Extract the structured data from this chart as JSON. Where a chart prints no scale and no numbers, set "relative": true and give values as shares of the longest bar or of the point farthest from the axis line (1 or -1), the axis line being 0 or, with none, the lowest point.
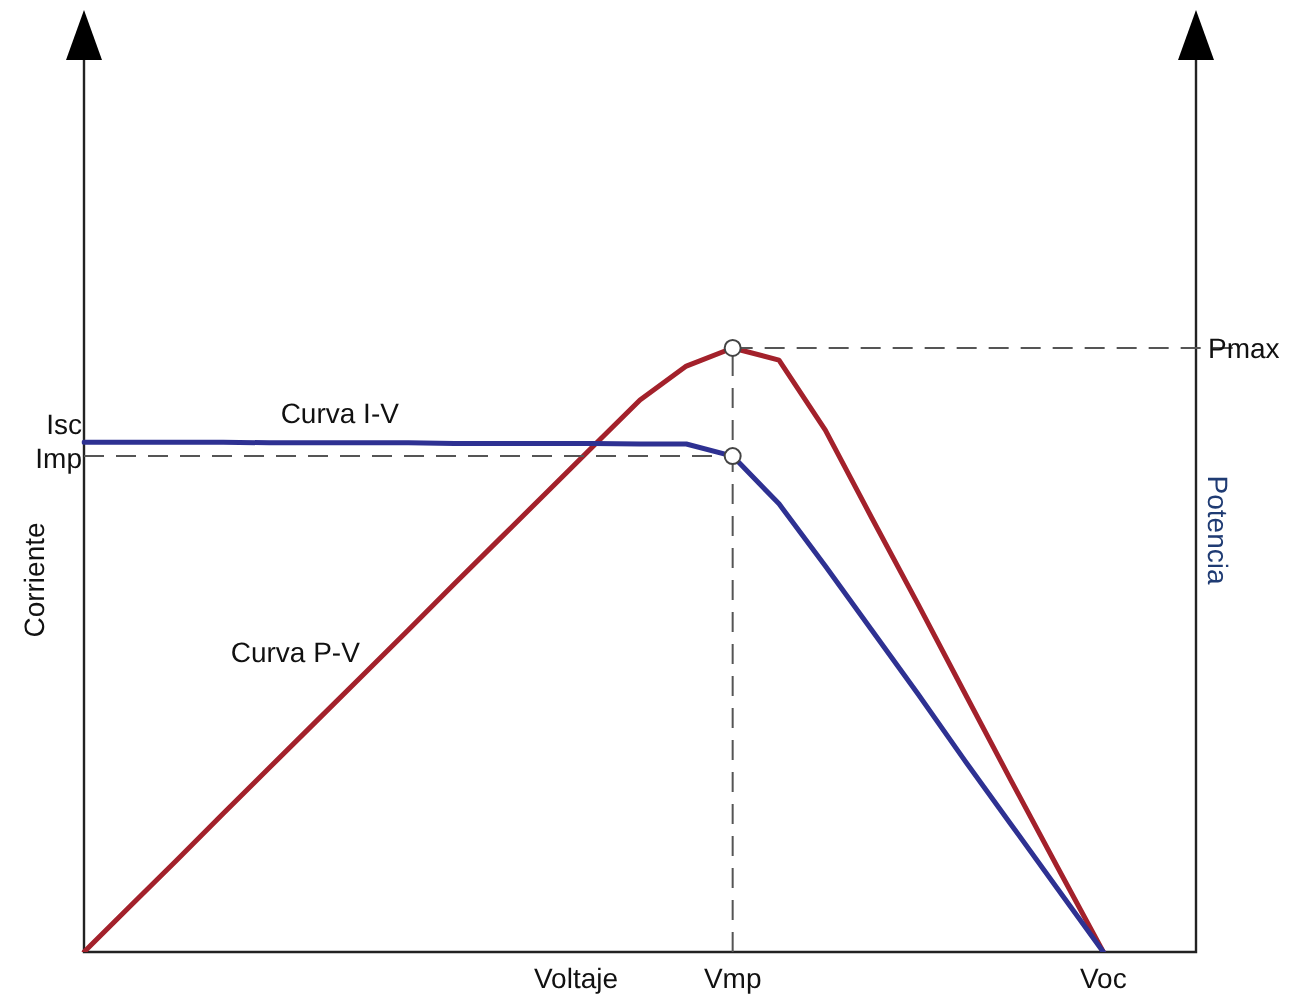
{
  "chart_data": {
    "type": "line",
    "relative": true,
    "xlabel": "Voltaje",
    "ylabel": "Corriente",
    "y2label": "Potencia",
    "legend": false,
    "categories": [
      null,
      null,
      null,
      null,
      null,
      null,
      null,
      null,
      null,
      null,
      null,
      null,
      null,
      null,
      "Vmp",
      null,
      null,
      null,
      null,
      null,
      null,
      null,
      "Voc",
      null,
      null
    ],
    "series": [
      {
        "name": "Curva I-V",
        "color": "#2e3192",
        "values": [
          0.844,
          0.844,
          0.844,
          0.844,
          0.843,
          0.843,
          0.843,
          0.843,
          0.842,
          0.842,
          0.842,
          0.842,
          0.841,
          0.841,
          0.821,
          0.742,
          0.639,
          0.533,
          0.427,
          0.318,
          0.212,
          0.106,
          0,
          null,
          null
        ]
      },
      {
        "name": "Curva P-V",
        "color": "#a3212b",
        "values": [
          0,
          0.076,
          0.152,
          0.229,
          0.305,
          0.381,
          0.457,
          0.533,
          0.61,
          0.686,
          0.762,
          0.838,
          0.914,
          0.97,
          1,
          0.98,
          0.864,
          0.719,
          0.576,
          0.43,
          0.285,
          0.142,
          0,
          null,
          null
        ]
      }
    ],
    "ref_lines": [
      {
        "axis": "x",
        "value": "Vmp"
      },
      {
        "axis": "y",
        "value": 0.821,
        "label": "Imp"
      },
      {
        "axis": "y",
        "value": 1,
        "label": "Pmax"
      }
    ],
    "annotations": [
      "Isc"
    ]
  }
}
